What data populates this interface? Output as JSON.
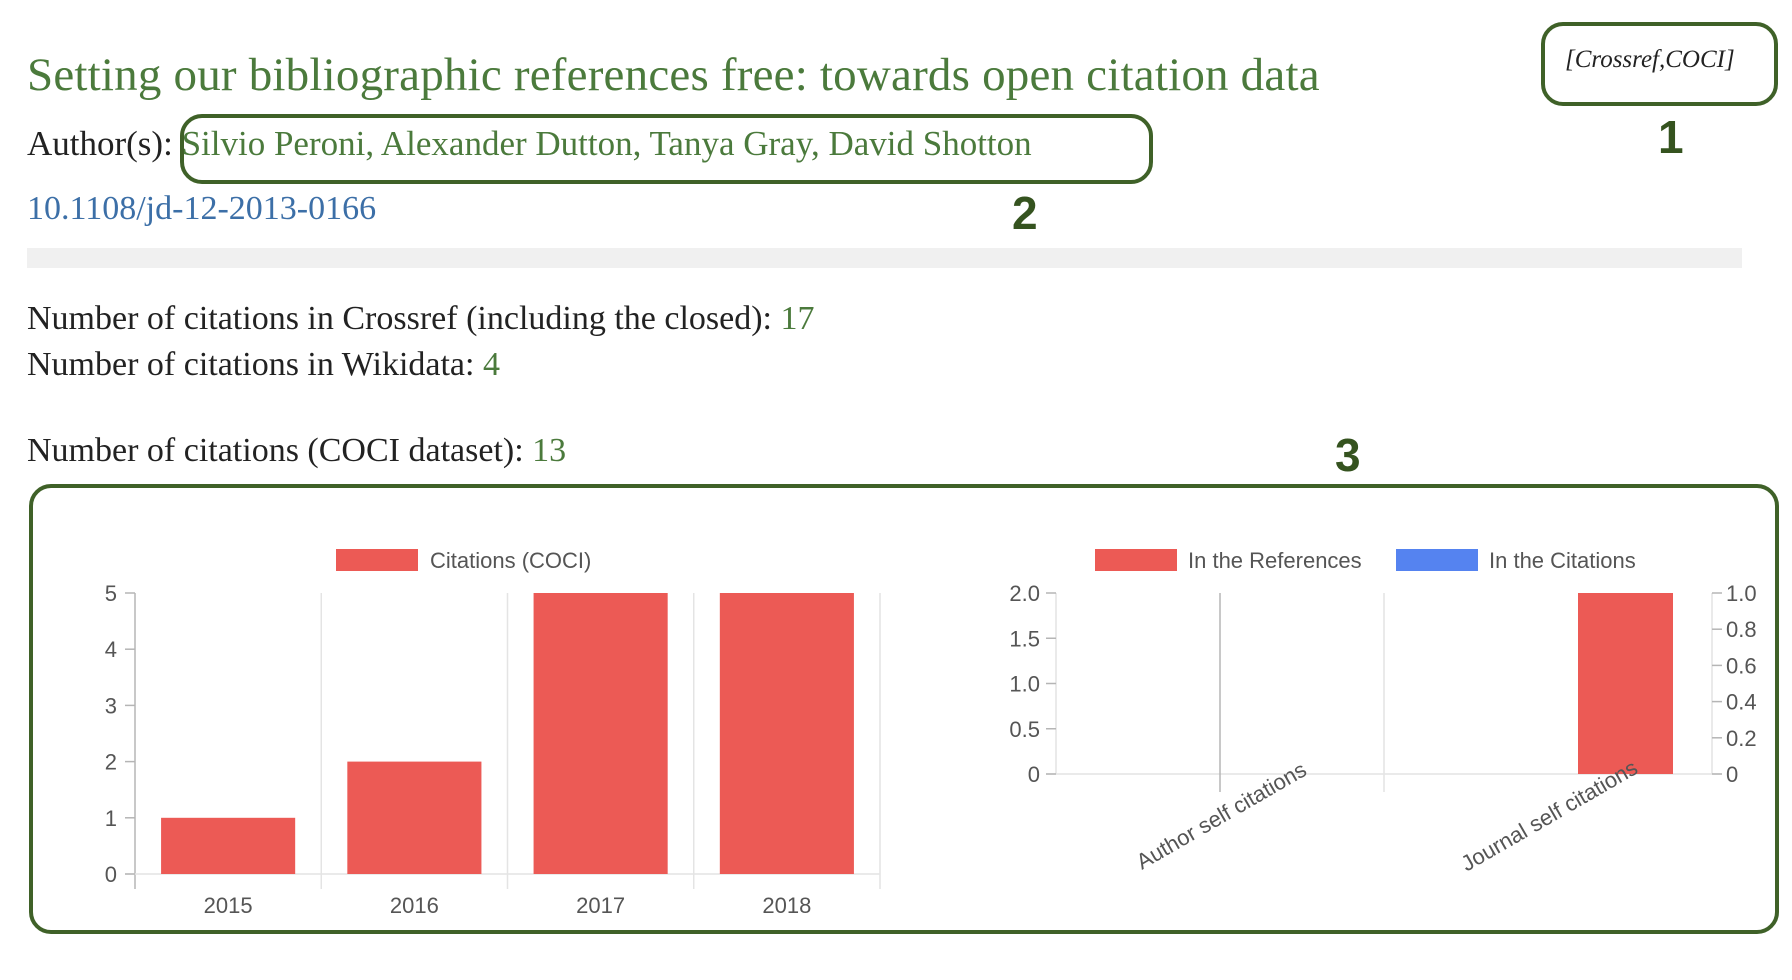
{
  "paper": {
    "title": "Setting our bibliographic references free: towards open citation data",
    "sources": "[Crossref,COCI]",
    "author_label": "Author(s): ",
    "authors": "Silvio Peroni, Alexander Dutton, Tanya Gray, David Shotton",
    "doi": "10.1108/jd-12-2013-0166"
  },
  "stats": {
    "crossref_label": "Number of citations in Crossref (including the closed): ",
    "crossref_value": "17",
    "wikidata_label": "Number of citations in Wikidata: ",
    "wikidata_value": "4",
    "coci_label": "Number of citations (COCI dataset): ",
    "coci_value": "13"
  },
  "callouts": [
    "1",
    "2",
    "3"
  ],
  "colors": {
    "accent": "#4b7a3c",
    "link": "#3c6fa7",
    "callout": "#3f6128",
    "red": "#ec5a55",
    "blue": "#5583f0"
  },
  "chart_data": [
    {
      "type": "bar",
      "categories": [
        "2015",
        "2016",
        "2017",
        "2018"
      ],
      "series": [
        {
          "name": "Citations (COCI)",
          "values": [
            1,
            2,
            5,
            5
          ],
          "color": "#ec5a55"
        }
      ],
      "ylim": [
        0,
        5
      ],
      "yticks": [
        "0",
        "1",
        "2",
        "3",
        "4",
        "5"
      ],
      "legend": "top",
      "grid": true
    },
    {
      "type": "bar",
      "categories": [
        "Author self citations",
        "Journal self citations"
      ],
      "series": [
        {
          "name": "In the References",
          "values": [
            0,
            2
          ],
          "color": "#ec5a55",
          "axis": "left"
        },
        {
          "name": "In the Citations",
          "values": [
            0,
            0
          ],
          "color": "#5583f0",
          "axis": "right"
        }
      ],
      "ylim_left": [
        0,
        2
      ],
      "yticks_left": [
        "0",
        "0.5",
        "1.0",
        "1.5",
        "2.0"
      ],
      "ylim_right": [
        0,
        1
      ],
      "yticks_right": [
        "0",
        "0.2",
        "0.4",
        "0.6",
        "0.8",
        "1.0"
      ],
      "legend": "top",
      "grid": true
    }
  ]
}
